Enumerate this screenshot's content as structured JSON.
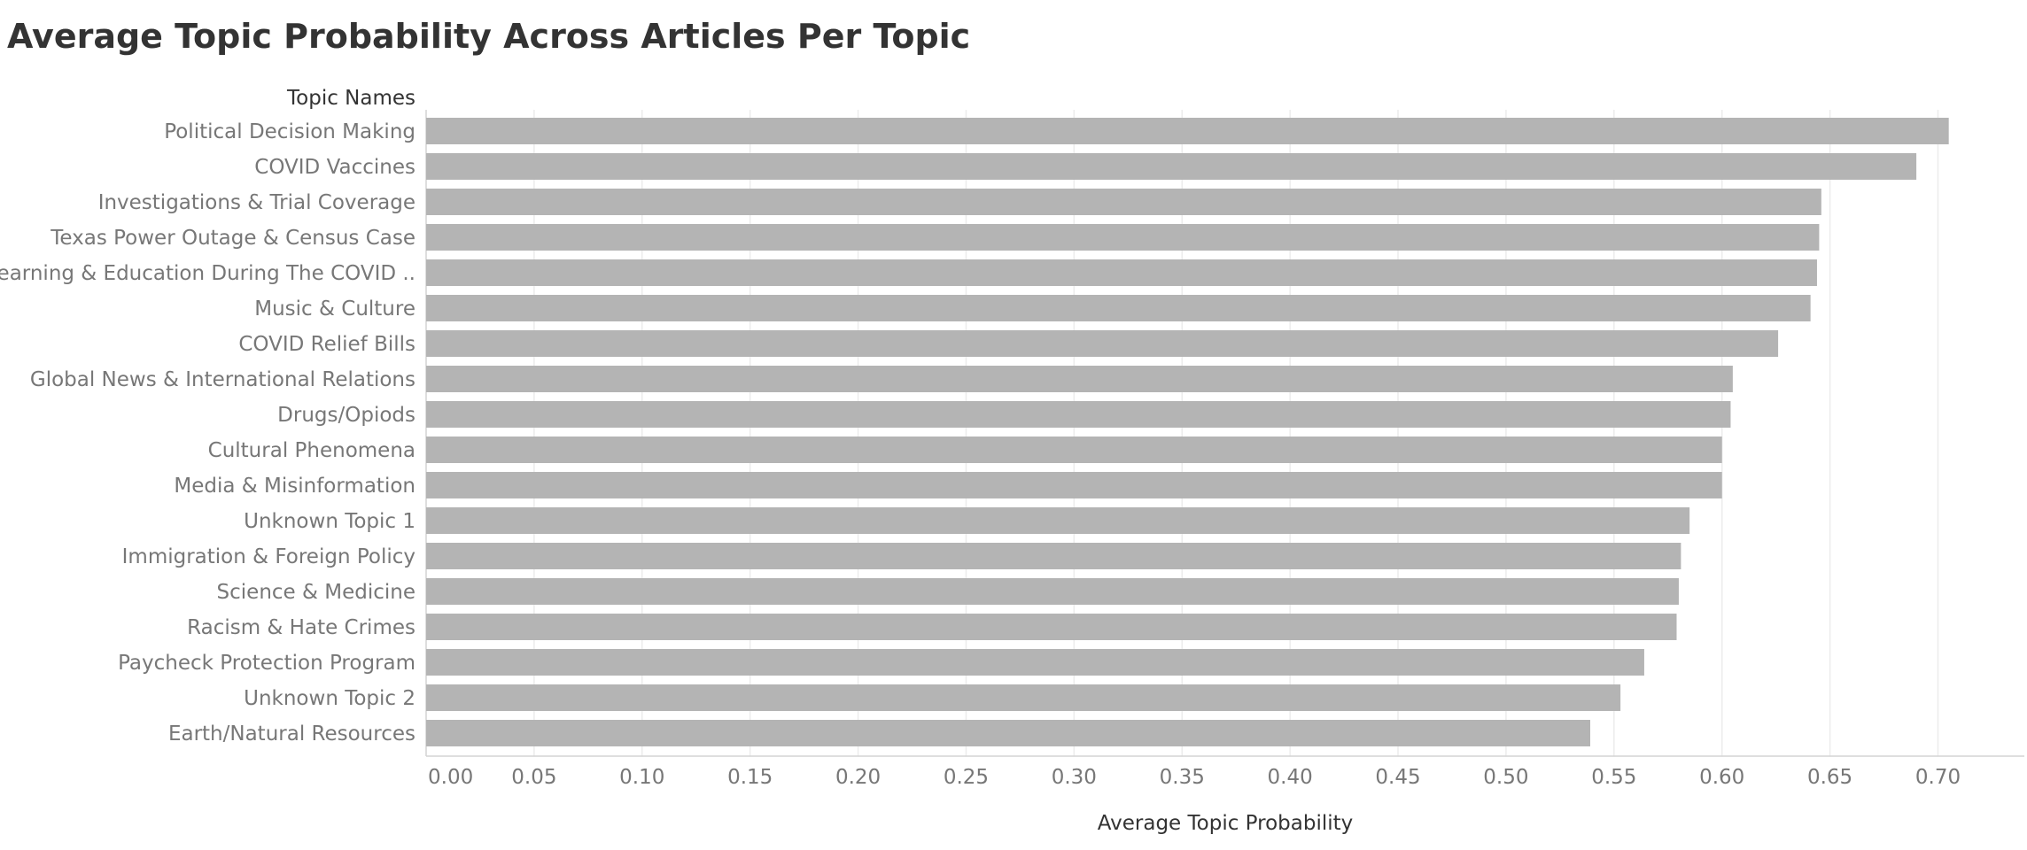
{
  "chart_data": {
    "type": "bar",
    "orientation": "horizontal",
    "title": "Average Topic Probability Across Articles Per Topic",
    "category_header": "Topic Names",
    "xlabel": "Average Topic Probability",
    "ylabel": "",
    "xlim": [
      0,
      0.74
    ],
    "xticks": [
      "0.00",
      "0.05",
      "0.10",
      "0.15",
      "0.20",
      "0.25",
      "0.30",
      "0.35",
      "0.40",
      "0.45",
      "0.50",
      "0.55",
      "0.60",
      "0.65",
      "0.70"
    ],
    "grid": true,
    "legend": "none",
    "categories": [
      "Political Decision Making",
      "COVID Vaccines",
      "Investigations & Trial Coverage",
      "Texas Power Outage & Census Case",
      "Learning & Education During The COVID ..",
      "Music & Culture",
      "COVID Relief Bills",
      "Global News & International Relations",
      "Drugs/Opiods",
      "Cultural Phenomena",
      "Media & Misinformation",
      "Unknown Topic 1",
      "Immigration & Foreign Policy",
      "Science & Medicine",
      "Racism & Hate Crimes",
      "Paycheck Protection Program",
      "Unknown Topic 2",
      "Earth/Natural Resources"
    ],
    "values": [
      0.705,
      0.69,
      0.646,
      0.645,
      0.644,
      0.641,
      0.626,
      0.605,
      0.604,
      0.6,
      0.6,
      0.585,
      0.581,
      0.58,
      0.579,
      0.564,
      0.553,
      0.539
    ],
    "colors": {
      "bar": "#b4b4b4",
      "grid": "#ececec",
      "title": "#333333",
      "header": "#333333",
      "label": "#777777",
      "axis": "#d4d4d4"
    }
  }
}
